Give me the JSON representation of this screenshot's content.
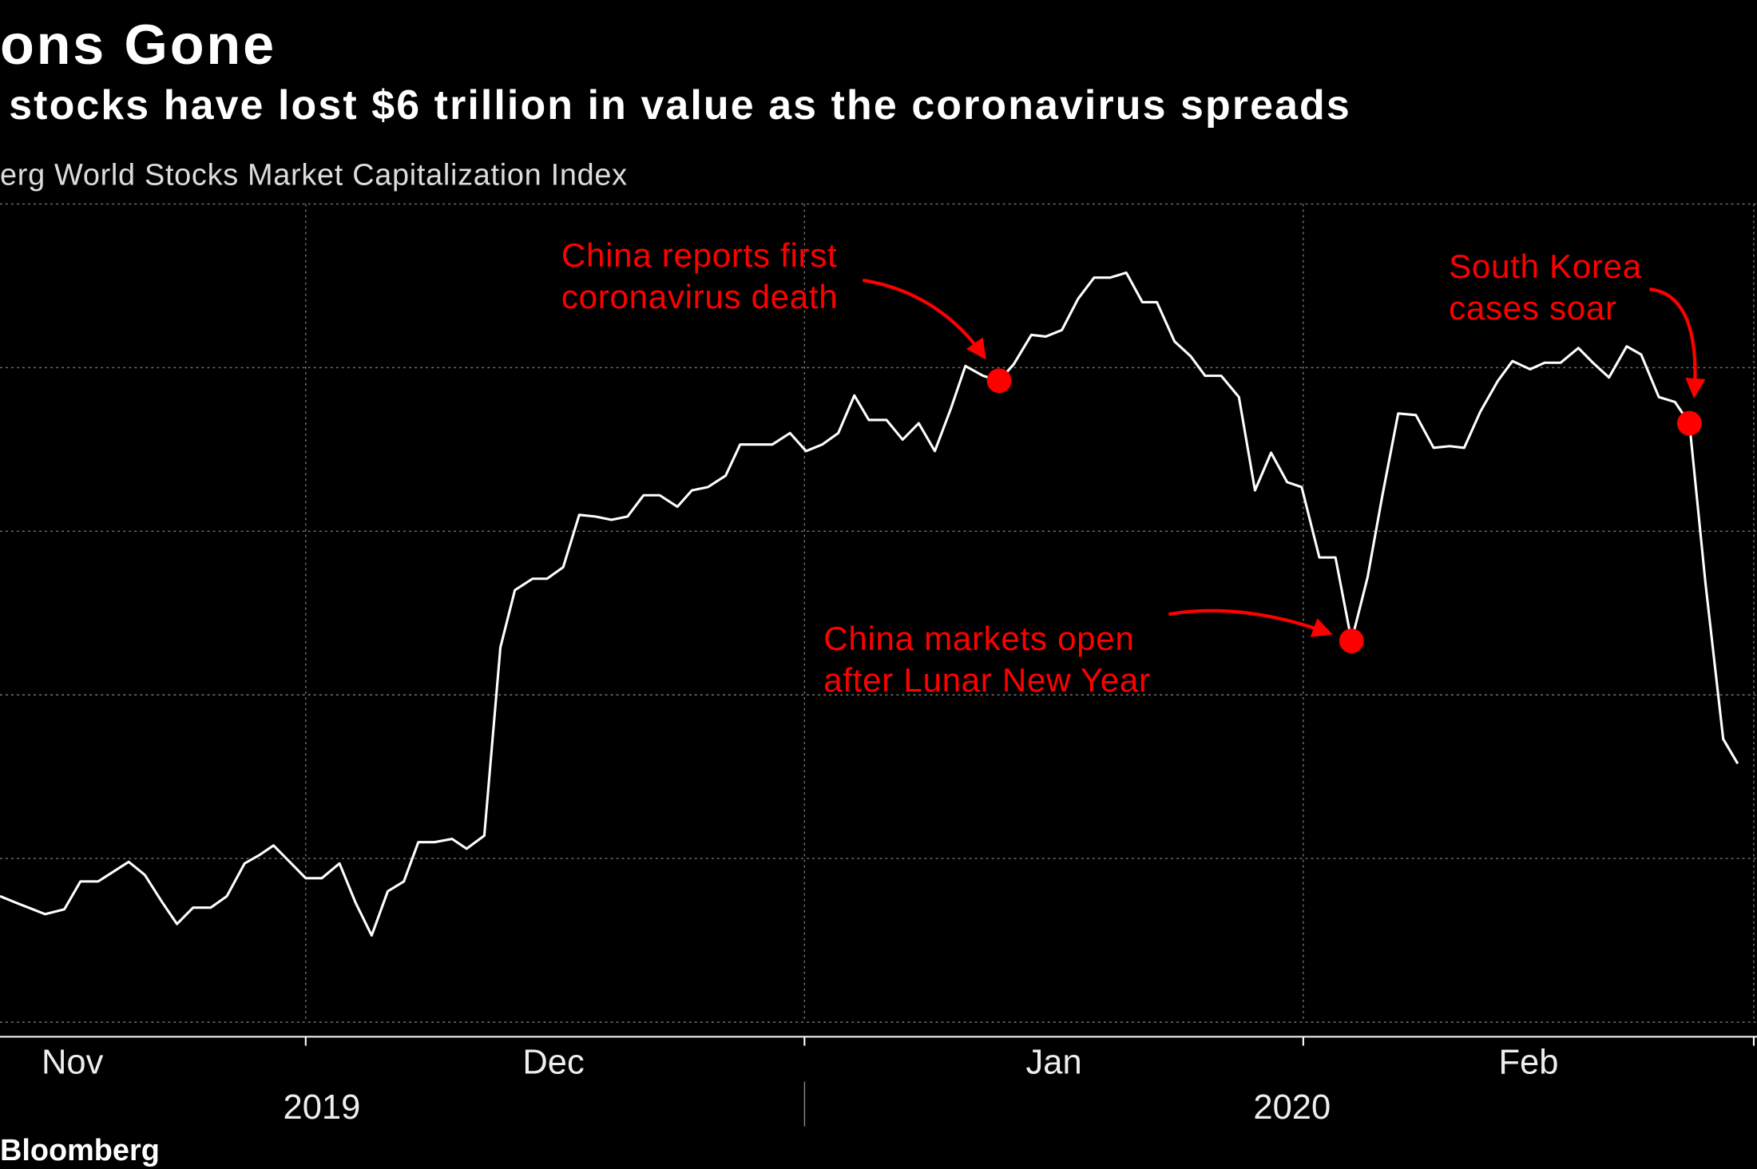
{
  "chart_data": {
    "type": "line",
    "title": "ons Gone",
    "subtitle": "stocks have lost $6 trillion in value as the coronavirus spreads",
    "source_label": "erg World Stocks Market Capitalization Index",
    "brand": "Bloomberg",
    "xlim": [
      -19,
      90.2
    ],
    "ylim": [
      0,
      5
    ],
    "yticks": [
      0,
      1,
      2,
      3,
      4,
      5
    ],
    "xgrid": [
      0,
      31,
      62,
      90
    ],
    "xticks": [
      {
        "value": -14.5,
        "label": "Nov"
      },
      {
        "value": 15.4,
        "label": "Dec"
      },
      {
        "value": 46.5,
        "label": "Jan"
      },
      {
        "value": 76,
        "label": "Feb"
      }
    ],
    "years": [
      {
        "value": 1,
        "label": "2019"
      },
      {
        "value": 61.3,
        "label": "2020"
      }
    ],
    "grid": true,
    "series": [
      {
        "name": "World Stocks Market Capitalization",
        "color": "#ffffff",
        "x": [
          -19,
          -18,
          -16.2,
          -15,
          -14,
          -12.9,
          -11,
          -10,
          -8.9,
          -8,
          -7,
          -5.9,
          -4.9,
          -3.8,
          -2.9,
          -2,
          -0.9,
          0,
          1,
          2.1,
          3.1,
          4.1,
          5.1,
          6.1,
          7,
          8,
          9.1,
          10,
          11.1,
          12.1,
          13,
          14.1,
          15,
          16,
          17,
          18,
          19,
          20,
          21,
          22,
          23.1,
          24,
          25,
          26.1,
          27,
          28.1,
          29,
          30.1,
          31.1,
          32.1,
          33.1,
          34.1,
          35,
          36.1,
          37.1,
          38.1,
          39.1,
          40.1,
          41,
          42.1,
          43.1,
          44,
          45.1,
          46,
          47,
          48,
          49,
          50,
          51,
          52,
          52.9,
          54,
          55,
          55.9,
          56.9,
          58,
          59,
          60,
          61,
          61.9,
          63,
          64,
          65,
          66,
          66.9,
          67.9,
          69,
          70.1,
          71.1,
          72,
          73,
          74.1,
          75,
          76.1,
          77,
          78,
          79.1,
          80,
          81,
          82.1,
          83,
          84.1,
          85.1,
          86,
          87,
          88.1,
          89
        ],
        "values": [
          0.77,
          0.73,
          0.66,
          0.69,
          0.86,
          0.86,
          0.98,
          0.9,
          0.73,
          0.6,
          0.7,
          0.7,
          0.77,
          0.97,
          1.02,
          1.08,
          0.97,
          0.88,
          0.88,
          0.97,
          0.73,
          0.53,
          0.8,
          0.86,
          1.1,
          1.1,
          1.12,
          1.06,
          1.14,
          2.29,
          2.64,
          2.71,
          2.71,
          2.78,
          3.1,
          3.09,
          3.07,
          3.09,
          3.22,
          3.22,
          3.15,
          3.25,
          3.27,
          3.34,
          3.53,
          3.53,
          3.53,
          3.6,
          3.49,
          3.53,
          3.6,
          3.83,
          3.68,
          3.68,
          3.56,
          3.66,
          3.49,
          3.75,
          4.01,
          3.95,
          3.92,
          4.02,
          4.2,
          4.19,
          4.23,
          4.42,
          4.55,
          4.55,
          4.58,
          4.4,
          4.4,
          4.16,
          4.07,
          3.95,
          3.95,
          3.82,
          3.25,
          3.48,
          3.3,
          3.27,
          2.84,
          2.84,
          2.33,
          2.72,
          3.21,
          3.72,
          3.71,
          3.51,
          3.52,
          3.51,
          3.73,
          3.92,
          4.04,
          3.99,
          4.03,
          4.03,
          4.12,
          4.03,
          3.94,
          4.13,
          4.08,
          3.82,
          3.79,
          3.66,
          2.68,
          1.73,
          1.58
        ]
      }
    ],
    "annotations": [
      {
        "lines": [
          "China reports first",
          "coronavirus death"
        ],
        "x": 43.1,
        "y": 3.92,
        "color": "#ff0000"
      },
      {
        "lines": [
          "China markets open",
          "after Lunar New Year"
        ],
        "x": 65,
        "y": 2.33,
        "color": "#ff0000"
      },
      {
        "lines": [
          "South Korea",
          "cases soar"
        ],
        "x": 86,
        "y": 3.66,
        "color": "#ff0000"
      }
    ]
  }
}
